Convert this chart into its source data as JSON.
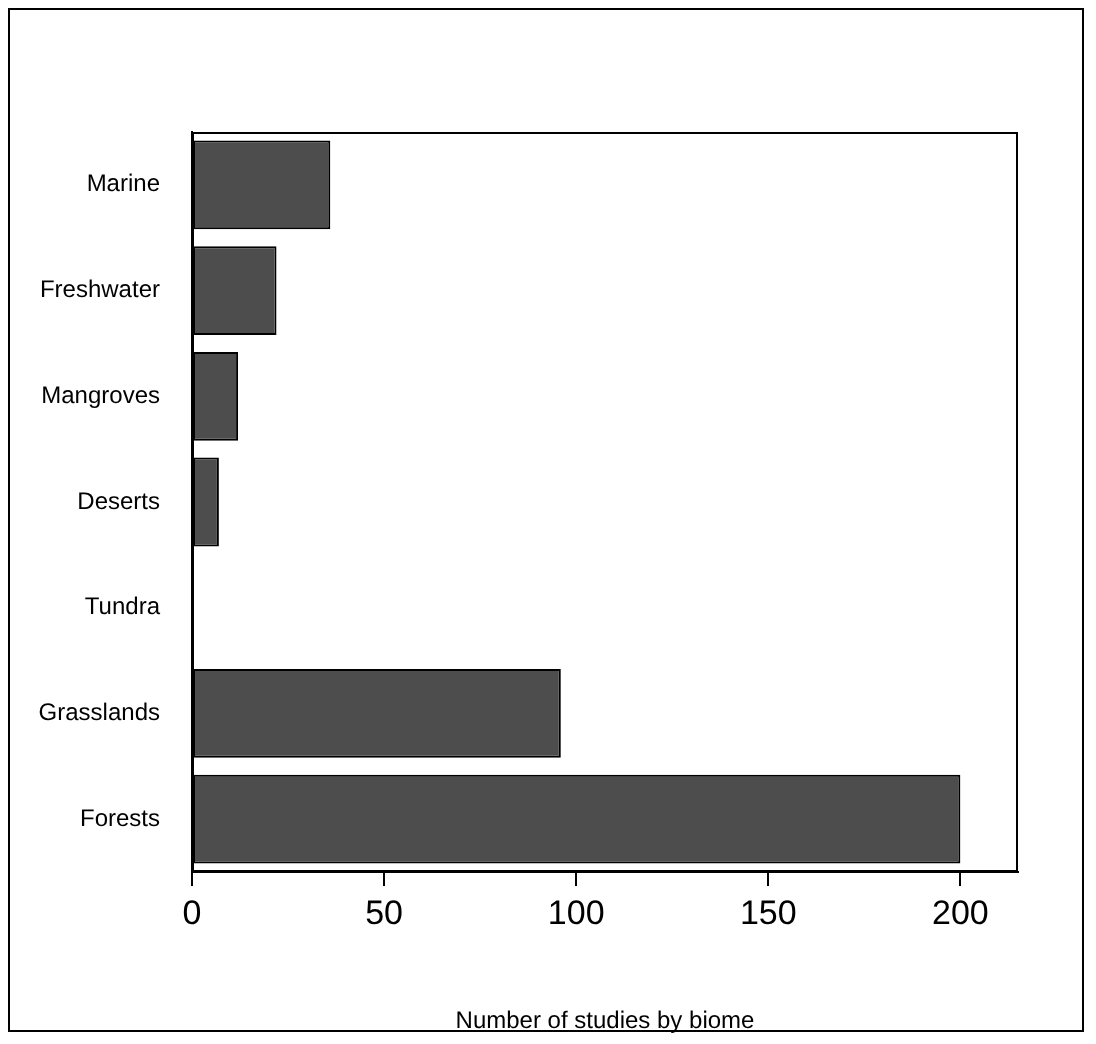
{
  "chart_data": {
    "type": "bar",
    "orientation": "horizontal",
    "xlabel": "Number of studies by biome",
    "categories": [
      "Marine",
      "Freshwater",
      "Mangroves",
      "Deserts",
      "Tundra",
      "Grasslands",
      "Forests"
    ],
    "values": [
      36,
      22,
      12,
      7,
      0,
      96,
      200
    ],
    "color": "#4d4d4d",
    "xlim": [
      0,
      215
    ],
    "xticks": [
      0,
      50,
      100,
      150,
      200
    ],
    "grid": false
  }
}
